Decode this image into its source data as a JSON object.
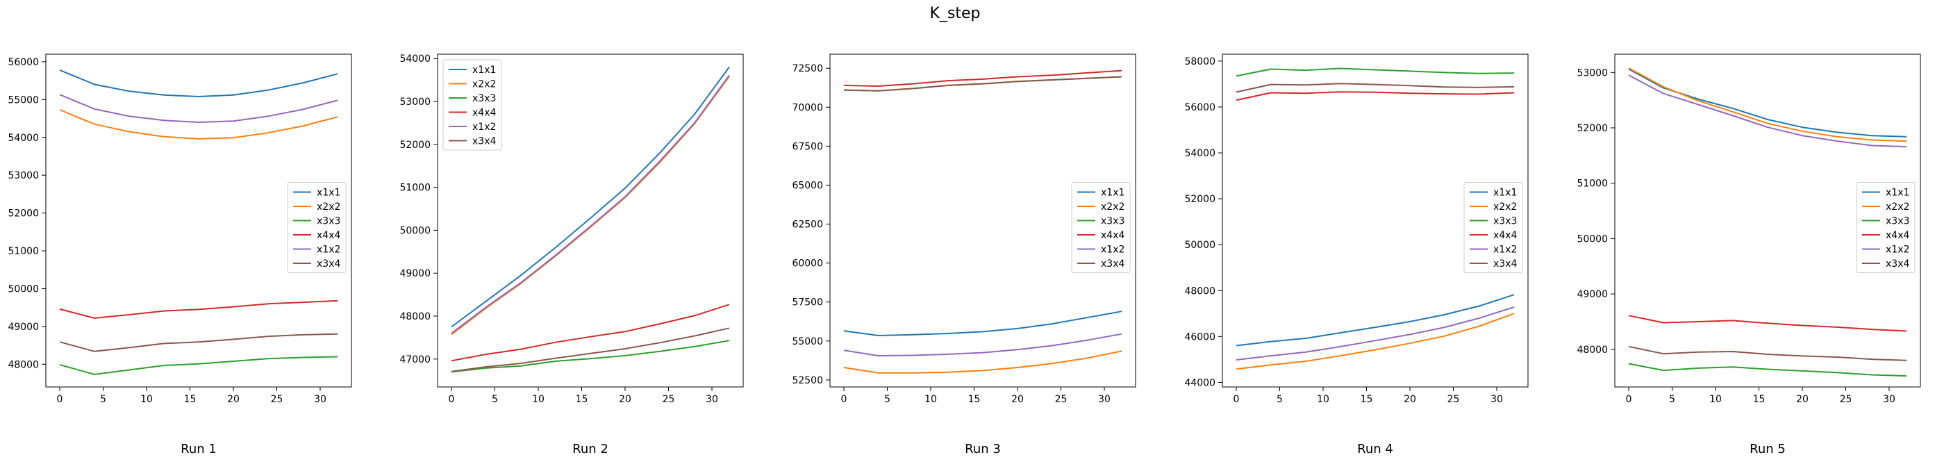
{
  "figure": {
    "title": "K_step"
  },
  "colors": {
    "x1x1": "#1f77b4",
    "x2x2": "#ff7f0e",
    "x3x3": "#2ca02c",
    "x4x4": "#d62728",
    "x1x2": "#9467bd",
    "x3x4": "#8c564b"
  },
  "chart_data": [
    {
      "type": "line",
      "title": "",
      "xlabel": "Run 1",
      "ylabel": "",
      "x": [
        0,
        4,
        8,
        12,
        16,
        20,
        24,
        28,
        32
      ],
      "xticks": [
        0,
        5,
        10,
        15,
        20,
        25,
        30
      ],
      "xlim": [
        -1.6,
        33.6
      ],
      "ylim": [
        47400,
        56200
      ],
      "yticks": [
        48000,
        49000,
        50000,
        51000,
        52000,
        53000,
        54000,
        55000,
        56000
      ],
      "legend": "center-right",
      "series": [
        {
          "name": "x1x1",
          "values": [
            55780,
            55400,
            55220,
            55120,
            55080,
            55120,
            55250,
            55440,
            55680
          ]
        },
        {
          "name": "x2x2",
          "values": [
            54730,
            54350,
            54150,
            54020,
            53960,
            53990,
            54120,
            54300,
            54540
          ]
        },
        {
          "name": "x3x3",
          "values": [
            47990,
            47730,
            47850,
            47970,
            48010,
            48080,
            48150,
            48180,
            48200
          ]
        },
        {
          "name": "x4x4",
          "values": [
            49460,
            49220,
            49310,
            49410,
            49450,
            49520,
            49600,
            49640,
            49680
          ]
        },
        {
          "name": "x1x2",
          "values": [
            55130,
            54750,
            54560,
            54450,
            54400,
            54430,
            54560,
            54740,
            54980
          ]
        },
        {
          "name": "x3x4",
          "values": [
            48590,
            48340,
            48440,
            48550,
            48590,
            48660,
            48740,
            48780,
            48800
          ]
        }
      ]
    },
    {
      "type": "line",
      "title": "",
      "xlabel": "Run 2",
      "ylabel": "",
      "x": [
        0,
        4,
        8,
        12,
        16,
        20,
        24,
        28,
        32
      ],
      "xticks": [
        0,
        5,
        10,
        15,
        20,
        25,
        30
      ],
      "xlim": [
        -1.6,
        33.6
      ],
      "ylim": [
        46350,
        54100
      ],
      "yticks": [
        47000,
        48000,
        49000,
        50000,
        51000,
        52000,
        53000,
        54000
      ],
      "legend": "top-left",
      "series": [
        {
          "name": "x1x1",
          "values": [
            47750,
            48350,
            48950,
            49600,
            50280,
            50980,
            51800,
            52700,
            53800
          ]
        },
        {
          "name": "x2x2",
          "values": [
            47570,
            48190,
            48760,
            49400,
            50070,
            50760,
            51580,
            52480,
            53580
          ]
        },
        {
          "name": "x3x3",
          "values": [
            46700,
            46790,
            46840,
            46950,
            47010,
            47080,
            47180,
            47290,
            47430
          ]
        },
        {
          "name": "x4x4",
          "values": [
            46960,
            47110,
            47230,
            47390,
            47520,
            47640,
            47820,
            48010,
            48270
          ]
        },
        {
          "name": "x1x2",
          "values": [
            47600,
            48210,
            48780,
            49420,
            50090,
            50780,
            51610,
            52500,
            53610
          ]
        },
        {
          "name": "x3x4",
          "values": [
            46710,
            46820,
            46900,
            47020,
            47130,
            47240,
            47380,
            47540,
            47720
          ]
        }
      ]
    },
    {
      "type": "line",
      "title": "",
      "xlabel": "Run 3",
      "ylabel": "",
      "x": [
        0,
        4,
        8,
        12,
        16,
        20,
        24,
        28,
        32
      ],
      "xticks": [
        0,
        5,
        10,
        15,
        20,
        25,
        30
      ],
      "xlim": [
        -1.6,
        33.6
      ],
      "ylim": [
        52050,
        73400
      ],
      "yticks": [
        52500,
        55000,
        57500,
        60000,
        62500,
        65000,
        67500,
        70000,
        72500
      ],
      "legend": "center-right",
      "series": [
        {
          "name": "x1x1",
          "values": [
            55650,
            55350,
            55400,
            55480,
            55600,
            55800,
            56100,
            56500,
            56900
          ]
        },
        {
          "name": "x2x2",
          "values": [
            53300,
            52950,
            52950,
            53000,
            53100,
            53300,
            53550,
            53900,
            54350
          ]
        },
        {
          "name": "x3x3",
          "values": [
            71100,
            71050,
            71200,
            71400,
            71500,
            71650,
            71750,
            71850,
            71950
          ]
        },
        {
          "name": "x4x4",
          "values": [
            71400,
            71350,
            71500,
            71700,
            71800,
            71950,
            72050,
            72200,
            72350
          ]
        },
        {
          "name": "x1x2",
          "values": [
            54400,
            54050,
            54080,
            54150,
            54250,
            54450,
            54700,
            55050,
            55450
          ]
        },
        {
          "name": "x3x4",
          "values": [
            71100,
            71050,
            71200,
            71400,
            71500,
            71650,
            71750,
            71850,
            71950
          ]
        }
      ]
    },
    {
      "type": "line",
      "title": "",
      "xlabel": "Run 4",
      "ylabel": "",
      "x": [
        0,
        4,
        8,
        12,
        16,
        20,
        24,
        28,
        32
      ],
      "xticks": [
        0,
        5,
        10,
        15,
        20,
        25,
        30
      ],
      "xlim": [
        -1.6,
        33.6
      ],
      "ylim": [
        43800,
        58300
      ],
      "yticks": [
        44000,
        46000,
        48000,
        50000,
        52000,
        54000,
        56000,
        58000
      ],
      "legend": "center-right",
      "series": [
        {
          "name": "x1x1",
          "values": [
            45600,
            45780,
            45920,
            46160,
            46400,
            46650,
            46950,
            47330,
            47820
          ]
        },
        {
          "name": "x2x2",
          "values": [
            44580,
            44760,
            44920,
            45160,
            45420,
            45700,
            46020,
            46450,
            47000
          ]
        },
        {
          "name": "x3x3",
          "values": [
            57350,
            57650,
            57600,
            57680,
            57620,
            57560,
            57500,
            57460,
            57480
          ]
        },
        {
          "name": "x4x4",
          "values": [
            56300,
            56620,
            56600,
            56660,
            56640,
            56600,
            56570,
            56560,
            56620
          ]
        },
        {
          "name": "x1x2",
          "values": [
            44980,
            45160,
            45320,
            45560,
            45820,
            46090,
            46400,
            46800,
            47280
          ]
        },
        {
          "name": "x3x4",
          "values": [
            56650,
            56980,
            56960,
            57020,
            56980,
            56930,
            56870,
            56850,
            56880
          ]
        }
      ]
    },
    {
      "type": "line",
      "title": "",
      "xlabel": "Run 5",
      "ylabel": "",
      "x": [
        0,
        4,
        8,
        12,
        16,
        20,
        24,
        28,
        32
      ],
      "xticks": [
        0,
        5,
        10,
        15,
        20,
        25,
        30
      ],
      "xlim": [
        -1.6,
        33.6
      ],
      "ylim": [
        47320,
        53330
      ],
      "yticks": [
        48000,
        49000,
        50000,
        51000,
        52000,
        53000
      ],
      "legend": "center-right",
      "series": [
        {
          "name": "x1x1",
          "values": [
            53060,
            52720,
            52520,
            52350,
            52150,
            52010,
            51920,
            51860,
            51840
          ]
        },
        {
          "name": "x2x2",
          "values": [
            53080,
            52740,
            52490,
            52290,
            52080,
            51940,
            51840,
            51780,
            51760
          ]
        },
        {
          "name": "x3x3",
          "values": [
            47740,
            47620,
            47660,
            47680,
            47640,
            47610,
            47580,
            47540,
            47520
          ]
        },
        {
          "name": "x4x4",
          "values": [
            48610,
            48480,
            48500,
            48520,
            48470,
            48430,
            48400,
            48360,
            48330
          ]
        },
        {
          "name": "x1x2",
          "values": [
            52950,
            52620,
            52420,
            52220,
            52010,
            51860,
            51760,
            51680,
            51660
          ]
        },
        {
          "name": "x3x4",
          "values": [
            48050,
            47920,
            47950,
            47960,
            47910,
            47880,
            47860,
            47820,
            47800
          ]
        }
      ]
    }
  ]
}
